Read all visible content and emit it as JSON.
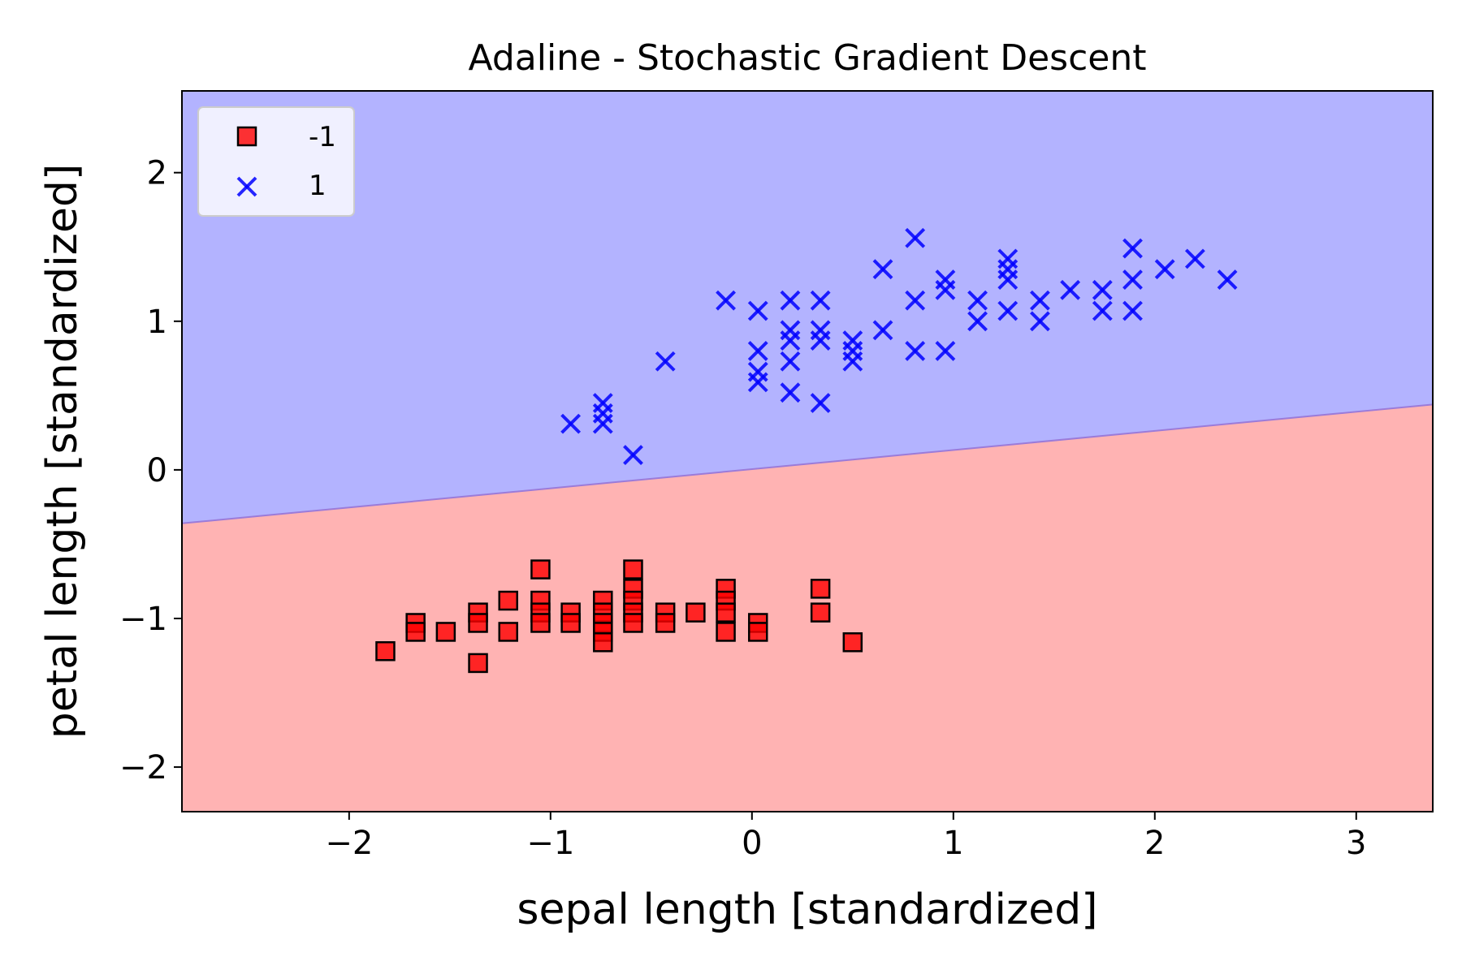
{
  "chart_data": {
    "type": "scatter",
    "title": "Adaline - Stochastic Gradient Descent",
    "xlabel": "sepal length [standardized]",
    "ylabel": "petal length [standardized]",
    "xlim": [
      -2.83,
      3.38
    ],
    "ylim": [
      -2.3,
      2.55
    ],
    "x_ticks": [
      -2,
      -1,
      0,
      1,
      2,
      3
    ],
    "x_tick_labels": [
      "−2",
      "−1",
      "0",
      "1",
      "2",
      "3"
    ],
    "y_ticks": [
      -2,
      -1,
      0,
      1,
      2
    ],
    "y_tick_labels": [
      "−2",
      "−1",
      "0",
      "1",
      "2"
    ],
    "grid": false,
    "legend_position": "top-left",
    "decision_boundary": {
      "x": [
        -2.83,
        3.38
      ],
      "y": [
        -0.36,
        0.44
      ],
      "region_above_color": "#b3b3ff",
      "region_below_color": "#ffb3b3",
      "region_above_class": "1",
      "region_below_class": "-1"
    },
    "series": [
      {
        "name": "-1",
        "marker": "square",
        "color": "#ff0000",
        "edge_color": "#000000",
        "points": [
          [
            -1.82,
            -1.22
          ],
          [
            -1.67,
            -1.03
          ],
          [
            -1.67,
            -1.09
          ],
          [
            -1.52,
            -1.09
          ],
          [
            -1.36,
            -0.96
          ],
          [
            -1.36,
            -1.03
          ],
          [
            -1.36,
            -1.3
          ],
          [
            -1.21,
            -0.88
          ],
          [
            -1.21,
            -1.09
          ],
          [
            -1.05,
            -0.67
          ],
          [
            -1.05,
            -0.88
          ],
          [
            -1.05,
            -0.96
          ],
          [
            -1.05,
            -1.03
          ],
          [
            -0.9,
            -0.96
          ],
          [
            -0.9,
            -1.03
          ],
          [
            -0.74,
            -0.88
          ],
          [
            -0.74,
            -0.96
          ],
          [
            -0.74,
            -1.03
          ],
          [
            -0.74,
            -1.09
          ],
          [
            -0.74,
            -1.16
          ],
          [
            -0.59,
            -0.67
          ],
          [
            -0.59,
            -0.8
          ],
          [
            -0.59,
            -0.88
          ],
          [
            -0.59,
            -0.96
          ],
          [
            -0.59,
            -1.03
          ],
          [
            -0.43,
            -0.96
          ],
          [
            -0.43,
            -1.03
          ],
          [
            -0.28,
            -0.96
          ],
          [
            -0.13,
            -0.8
          ],
          [
            -0.13,
            -0.88
          ],
          [
            -0.13,
            -0.96
          ],
          [
            -0.13,
            -1.09
          ],
          [
            0.03,
            -1.03
          ],
          [
            0.03,
            -1.09
          ],
          [
            0.34,
            -0.8
          ],
          [
            0.34,
            -0.96
          ],
          [
            0.5,
            -1.16
          ]
        ]
      },
      {
        "name": "1",
        "marker": "x",
        "color": "#0000ff",
        "points": [
          [
            -0.9,
            0.31
          ],
          [
            -0.74,
            0.31
          ],
          [
            -0.74,
            0.38
          ],
          [
            -0.74,
            0.45
          ],
          [
            -0.59,
            0.1
          ],
          [
            -0.43,
            0.73
          ],
          [
            -0.13,
            1.14
          ],
          [
            0.03,
            0.59
          ],
          [
            0.03,
            0.66
          ],
          [
            0.03,
            0.8
          ],
          [
            0.03,
            1.07
          ],
          [
            0.19,
            0.52
          ],
          [
            0.19,
            0.73
          ],
          [
            0.19,
            0.87
          ],
          [
            0.19,
            0.94
          ],
          [
            0.19,
            1.14
          ],
          [
            0.34,
            0.45
          ],
          [
            0.34,
            0.87
          ],
          [
            0.34,
            0.94
          ],
          [
            0.34,
            1.14
          ],
          [
            0.5,
            0.73
          ],
          [
            0.5,
            0.8
          ],
          [
            0.5,
            0.87
          ],
          [
            0.65,
            0.94
          ],
          [
            0.65,
            1.35
          ],
          [
            0.81,
            0.8
          ],
          [
            0.81,
            1.14
          ],
          [
            0.81,
            1.56
          ],
          [
            0.96,
            0.8
          ],
          [
            0.96,
            1.21
          ],
          [
            0.96,
            1.28
          ],
          [
            1.12,
            1.0
          ],
          [
            1.12,
            1.14
          ],
          [
            1.27,
            1.07
          ],
          [
            1.27,
            1.28
          ],
          [
            1.27,
            1.35
          ],
          [
            1.27,
            1.42
          ],
          [
            1.43,
            1.0
          ],
          [
            1.43,
            1.14
          ],
          [
            1.58,
            1.21
          ],
          [
            1.74,
            1.07
          ],
          [
            1.74,
            1.21
          ],
          [
            1.89,
            1.07
          ],
          [
            1.89,
            1.28
          ],
          [
            1.89,
            1.49
          ],
          [
            2.05,
            1.35
          ],
          [
            2.2,
            1.42
          ],
          [
            2.36,
            1.28
          ]
        ]
      }
    ]
  }
}
